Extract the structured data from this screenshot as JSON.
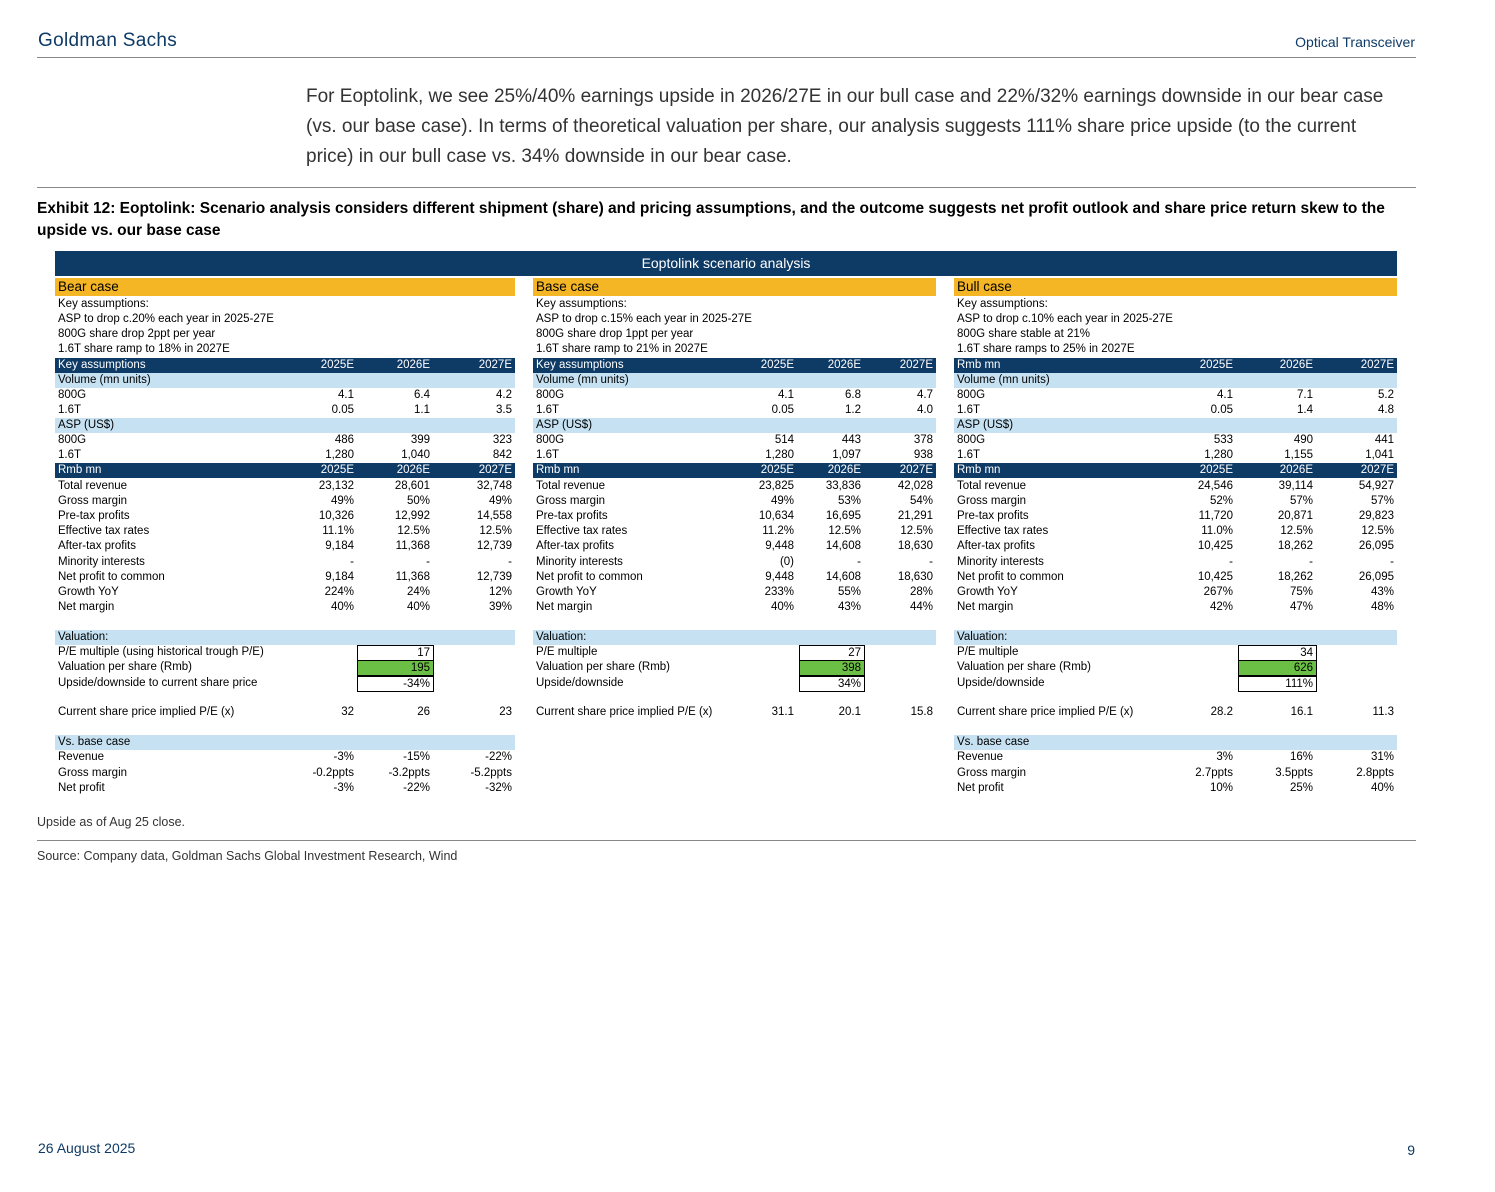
{
  "header": {
    "brand": "Goldman Sachs",
    "topic": "Optical Transceiver"
  },
  "intro": "For Eoptolink, we see 25%/40% earnings upside in 2026/27E in our bull case and 22%/32% earnings downside in our bear case (vs. our base case). In terms of theoretical valuation per share, our analysis suggests 111% share price upside (to the current price) in our bull case vs. 34% downside in our bear case.",
  "exhibit_title": "Exhibit 12: Eoptolink: Scenario analysis considers different shipment (share) and pricing assumptions, and the outcome suggests net profit outlook and share price return skew to the upside vs. our base case",
  "table_title": "Eoptolink scenario analysis",
  "colors": {
    "navy": "#0e3a66",
    "amber": "#f5b626",
    "light_blue": "#c6e2f2",
    "green": "#6cbf45"
  },
  "cases": [
    {
      "name": "Bear case",
      "assumptions": [
        "Key assumptions:",
        "ASP to drop c.20% each year in 2025-27E",
        "800G share drop 2ppt per year",
        "1.6T share ramp to 18% in 2027E"
      ],
      "ka_header": "Key assumptions",
      "years": [
        "2025E",
        "2026E",
        "2027E"
      ],
      "volume_label": "Volume (mn units)",
      "volume": [
        {
          "label": "800G",
          "v": [
            "4.1",
            "6.4",
            "4.2"
          ]
        },
        {
          "label": "1.6T",
          "v": [
            "0.05",
            "1.1",
            "3.5"
          ]
        }
      ],
      "asp_label": "ASP (US$)",
      "asp": [
        {
          "label": "800G",
          "v": [
            "486",
            "399",
            "323"
          ]
        },
        {
          "label": "1.6T",
          "v": [
            "1,280",
            "1,040",
            "842"
          ]
        }
      ],
      "fin_header": "Rmb mn",
      "financials": [
        {
          "label": "Total revenue",
          "v": [
            "23,132",
            "28,601",
            "32,748"
          ]
        },
        {
          "label": "Gross margin",
          "v": [
            "49%",
            "50%",
            "49%"
          ]
        },
        {
          "label": "Pre-tax profits",
          "v": [
            "10,326",
            "12,992",
            "14,558"
          ]
        },
        {
          "label": "Effective tax rates",
          "v": [
            "11.1%",
            "12.5%",
            "12.5%"
          ]
        },
        {
          "label": "After-tax profits",
          "v": [
            "9,184",
            "11,368",
            "12,739"
          ]
        },
        {
          "label": "Minority interests",
          "v": [
            "-",
            "-",
            "-"
          ]
        },
        {
          "label": "Net profit to common",
          "v": [
            "9,184",
            "11,368",
            "12,739"
          ]
        },
        {
          "label": "Growth YoY",
          "v": [
            "224%",
            "24%",
            "12%"
          ]
        },
        {
          "label": "Net margin",
          "v": [
            "40%",
            "40%",
            "39%"
          ]
        }
      ],
      "valuation_label": "Valuation:",
      "valuation": [
        {
          "label": "P/E multiple (using historical trough P/E)",
          "v": "17"
        },
        {
          "label": "Valuation per share (Rmb)",
          "v": "195"
        },
        {
          "label": "Upside/downside to current share price",
          "v": "-34%"
        }
      ],
      "implied_pe": {
        "label": "Current share price implied P/E (x)",
        "v": [
          "32",
          "26",
          "23"
        ]
      },
      "vs_base_label": "Vs. base case",
      "vs_base": [
        {
          "label": "Revenue",
          "v": [
            "-3%",
            "-15%",
            "-22%"
          ]
        },
        {
          "label": "Gross margin",
          "v": [
            "-0.2ppts",
            "-3.2ppts",
            "-5.2ppts"
          ]
        },
        {
          "label": "Net profit",
          "v": [
            "-3%",
            "-22%",
            "-32%"
          ]
        }
      ]
    },
    {
      "name": "Base case",
      "assumptions": [
        "Key assumptions:",
        "ASP to drop c.15% each year in 2025-27E",
        "800G share drop 1ppt per year",
        "1.6T share ramp to 21% in 2027E"
      ],
      "ka_header": "Key assumptions",
      "years": [
        "2025E",
        "2026E",
        "2027E"
      ],
      "volume_label": "Volume (mn units)",
      "volume": [
        {
          "label": "800G",
          "v": [
            "4.1",
            "6.8",
            "4.7"
          ]
        },
        {
          "label": "1.6T",
          "v": [
            "0.05",
            "1.2",
            "4.0"
          ]
        }
      ],
      "asp_label": "ASP (US$)",
      "asp": [
        {
          "label": "800G",
          "v": [
            "514",
            "443",
            "378"
          ]
        },
        {
          "label": "1.6T",
          "v": [
            "1,280",
            "1,097",
            "938"
          ]
        }
      ],
      "fin_header": "Rmb mn",
      "financials": [
        {
          "label": "Total revenue",
          "v": [
            "23,825",
            "33,836",
            "42,028"
          ]
        },
        {
          "label": "Gross margin",
          "v": [
            "49%",
            "53%",
            "54%"
          ]
        },
        {
          "label": "Pre-tax profits",
          "v": [
            "10,634",
            "16,695",
            "21,291"
          ]
        },
        {
          "label": "Effective tax rates",
          "v": [
            "11.2%",
            "12.5%",
            "12.5%"
          ]
        },
        {
          "label": "After-tax profits",
          "v": [
            "9,448",
            "14,608",
            "18,630"
          ]
        },
        {
          "label": "Minority interests",
          "v": [
            "(0)",
            "-",
            "-"
          ]
        },
        {
          "label": "Net profit to common",
          "v": [
            "9,448",
            "14,608",
            "18,630"
          ]
        },
        {
          "label": "Growth YoY",
          "v": [
            "233%",
            "55%",
            "28%"
          ]
        },
        {
          "label": "Net margin",
          "v": [
            "40%",
            "43%",
            "44%"
          ]
        }
      ],
      "valuation_label": "Valuation:",
      "valuation": [
        {
          "label": "P/E multiple",
          "v": "27"
        },
        {
          "label": "Valuation per share (Rmb)",
          "v": "398"
        },
        {
          "label": "Upside/downside",
          "v": "34%"
        }
      ],
      "implied_pe": {
        "label": "Current share price implied P/E (x)",
        "v": [
          "31.1",
          "20.1",
          "15.8"
        ]
      }
    },
    {
      "name": "Bull case",
      "assumptions": [
        "Key assumptions:",
        "ASP to drop c.10% each year in 2025-27E",
        "800G share stable at 21%",
        "1.6T share ramps to 25% in 2027E"
      ],
      "ka_header": "Rmb mn",
      "years": [
        "2025E",
        "2026E",
        "2027E"
      ],
      "volume_label": "Volume (mn units)",
      "volume": [
        {
          "label": "800G",
          "v": [
            "4.1",
            "7.1",
            "5.2"
          ]
        },
        {
          "label": "1.6T",
          "v": [
            "0.05",
            "1.4",
            "4.8"
          ]
        }
      ],
      "asp_label": "ASP (US$)",
      "asp": [
        {
          "label": "800G",
          "v": [
            "533",
            "490",
            "441"
          ]
        },
        {
          "label": "1.6T",
          "v": [
            "1,280",
            "1,155",
            "1,041"
          ]
        }
      ],
      "fin_header": "Rmb mn",
      "financials": [
        {
          "label": "Total revenue",
          "v": [
            "24,546",
            "39,114",
            "54,927"
          ]
        },
        {
          "label": "Gross margin",
          "v": [
            "52%",
            "57%",
            "57%"
          ]
        },
        {
          "label": "Pre-tax profits",
          "v": [
            "11,720",
            "20,871",
            "29,823"
          ]
        },
        {
          "label": "Effective tax rates",
          "v": [
            "11.0%",
            "12.5%",
            "12.5%"
          ]
        },
        {
          "label": "After-tax profits",
          "v": [
            "10,425",
            "18,262",
            "26,095"
          ]
        },
        {
          "label": "Minority interests",
          "v": [
            "-",
            "-",
            "-"
          ]
        },
        {
          "label": "Net profit to common",
          "v": [
            "10,425",
            "18,262",
            "26,095"
          ]
        },
        {
          "label": "Growth YoY",
          "v": [
            "267%",
            "75%",
            "43%"
          ]
        },
        {
          "label": "Net margin",
          "v": [
            "42%",
            "47%",
            "48%"
          ]
        }
      ],
      "valuation_label": "Valuation:",
      "valuation": [
        {
          "label": "P/E multiple",
          "v": "34"
        },
        {
          "label": "Valuation per share (Rmb)",
          "v": "626"
        },
        {
          "label": "Upside/downside",
          "v": "111%"
        }
      ],
      "implied_pe": {
        "label": "Current share price implied P/E (x)",
        "v": [
          "28.2",
          "16.1",
          "11.3"
        ]
      },
      "vs_base_label": "Vs. base case",
      "vs_base": [
        {
          "label": "Revenue",
          "v": [
            "3%",
            "16%",
            "31%"
          ]
        },
        {
          "label": "Gross margin",
          "v": [
            "2.7ppts",
            "3.5ppts",
            "2.8ppts"
          ]
        },
        {
          "label": "Net profit",
          "v": [
            "10%",
            "25%",
            "40%"
          ]
        }
      ]
    }
  ],
  "note": "Upside as of Aug 25 close.",
  "source": "Source: Company data, Goldman Sachs Global Investment Research, Wind",
  "footer": {
    "date": "26 August 2025",
    "page": "9"
  }
}
